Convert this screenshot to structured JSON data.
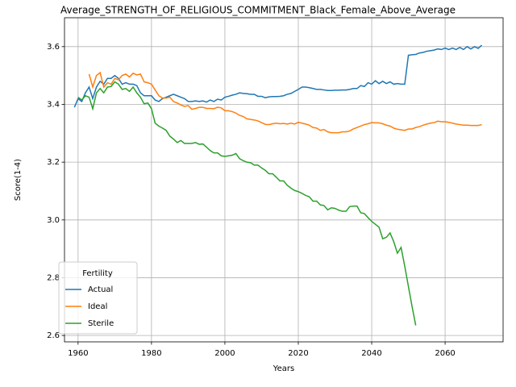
{
  "chart_data": {
    "type": "line",
    "title": "Average_STRENGTH_OF_RELIGIOUS_COMMITMENT_Black_Female_Above_Average",
    "x_label": "Years",
    "y_label": "Score(1-4)",
    "x": [
      1959,
      1960,
      1961,
      1962,
      1963,
      1964,
      1965,
      1966,
      1967,
      1968,
      1969,
      1970,
      1971,
      1972,
      1973,
      1974,
      1975,
      1976,
      1977,
      1978,
      1979,
      1980,
      1981,
      1982,
      1983,
      1984,
      1985,
      1986,
      1987,
      1988,
      1989,
      1990,
      1991,
      1992,
      1993,
      1994,
      1995,
      1996,
      1997,
      1998,
      1999,
      2000,
      2001,
      2002,
      2003,
      2004,
      2005,
      2006,
      2007,
      2008,
      2009,
      2010,
      2011,
      2012,
      2013,
      2014,
      2015,
      2016,
      2017,
      2018,
      2019,
      2020,
      2021,
      2022,
      2023,
      2024,
      2025,
      2026,
      2027,
      2028,
      2029,
      2030,
      2031,
      2032,
      2033,
      2034,
      2035,
      2036,
      2037,
      2038,
      2039,
      2040,
      2041,
      2042,
      2043,
      2044,
      2045,
      2046,
      2047,
      2048,
      2049,
      2050,
      2051,
      2052,
      2053,
      2054,
      2055,
      2056,
      2057,
      2058,
      2059,
      2060,
      2061,
      2062,
      2063,
      2064,
      2065,
      2066,
      2067,
      2068,
      2069,
      2070
    ],
    "series": [
      {
        "name": "Actual",
        "color": "#1f77b4",
        "values": [
          3.39,
          3.42,
          3.41,
          3.44,
          3.46,
          3.42,
          3.46,
          3.48,
          3.47,
          3.49,
          3.49,
          3.5,
          3.49,
          3.47,
          3.475,
          3.47,
          3.47,
          3.465,
          3.44,
          3.43,
          3.43,
          3.43,
          3.415,
          3.41,
          3.42,
          3.425,
          3.43,
          3.435,
          3.43,
          3.425,
          3.42,
          3.41,
          3.41,
          3.412,
          3.41,
          3.412,
          3.408,
          3.415,
          3.41,
          3.418,
          3.415,
          3.425,
          3.428,
          3.432,
          3.435,
          3.44,
          3.438,
          3.437,
          3.435,
          3.435,
          3.428,
          3.428,
          3.423,
          3.426,
          3.427,
          3.427,
          3.428,
          3.43,
          3.435,
          3.438,
          3.445,
          3.452,
          3.46,
          3.46,
          3.458,
          3.455,
          3.452,
          3.452,
          3.45,
          3.448,
          3.448,
          3.449,
          3.449,
          3.45,
          3.45,
          3.452,
          3.455,
          3.455,
          3.465,
          3.462,
          3.475,
          3.47,
          3.482,
          3.472,
          3.48,
          3.472,
          3.478,
          3.47,
          3.472,
          3.47,
          3.47,
          3.57,
          3.572,
          3.573,
          3.578,
          3.58,
          3.584,
          3.586,
          3.588,
          3.592,
          3.59,
          3.595,
          3.59,
          3.595,
          3.59,
          3.597,
          3.59,
          3.6,
          3.592,
          3.6,
          3.594,
          3.605
        ]
      },
      {
        "name": "Ideal",
        "color": "#ff7f0e",
        "values": [
          null,
          null,
          null,
          null,
          3.505,
          3.46,
          3.5,
          3.51,
          3.46,
          3.475,
          3.47,
          3.49,
          3.485,
          3.5,
          3.505,
          3.495,
          3.508,
          3.502,
          3.505,
          3.478,
          3.475,
          3.47,
          3.45,
          3.43,
          3.422,
          3.422,
          3.425,
          3.41,
          3.405,
          3.398,
          3.393,
          3.396,
          3.383,
          3.386,
          3.39,
          3.39,
          3.386,
          3.386,
          3.385,
          3.39,
          3.388,
          3.378,
          3.378,
          3.375,
          3.37,
          3.362,
          3.358,
          3.35,
          3.348,
          3.346,
          3.343,
          3.337,
          3.331,
          3.33,
          3.333,
          3.335,
          3.333,
          3.334,
          3.332,
          3.335,
          3.332,
          3.338,
          3.335,
          3.332,
          3.328,
          3.32,
          3.318,
          3.31,
          3.313,
          3.305,
          3.302,
          3.302,
          3.302,
          3.305,
          3.305,
          3.308,
          3.315,
          3.32,
          3.325,
          3.33,
          3.333,
          3.337,
          3.336,
          3.336,
          3.333,
          3.328,
          3.325,
          3.318,
          3.314,
          3.312,
          3.31,
          3.315,
          3.315,
          3.32,
          3.323,
          3.328,
          3.332,
          3.335,
          3.337,
          3.342,
          3.34,
          3.34,
          3.338,
          3.335,
          3.332,
          3.33,
          3.328,
          3.328,
          3.327,
          3.327,
          3.327,
          3.33
        ]
      },
      {
        "name": "Sterile",
        "color": "#2ca02c",
        "values": [
          null,
          3.425,
          3.415,
          3.43,
          3.425,
          3.385,
          3.44,
          3.455,
          3.44,
          3.46,
          3.462,
          3.478,
          3.47,
          3.452,
          3.455,
          3.445,
          3.46,
          3.44,
          3.425,
          3.402,
          3.405,
          3.385,
          3.335,
          3.325,
          3.318,
          3.31,
          3.29,
          3.28,
          3.268,
          3.275,
          3.265,
          3.265,
          3.265,
          3.268,
          3.262,
          3.263,
          3.252,
          3.24,
          3.232,
          3.232,
          3.222,
          3.22,
          3.222,
          3.224,
          3.23,
          3.212,
          3.205,
          3.2,
          3.198,
          3.19,
          3.19,
          3.18,
          3.172,
          3.16,
          3.16,
          3.148,
          3.135,
          3.135,
          3.12,
          3.11,
          3.102,
          3.098,
          3.092,
          3.085,
          3.08,
          3.065,
          3.065,
          3.052,
          3.05,
          3.035,
          3.042,
          3.04,
          3.034,
          3.03,
          3.03,
          3.046,
          3.048,
          3.048,
          3.025,
          3.022,
          3.008,
          2.995,
          2.985,
          2.975,
          2.935,
          2.94,
          2.955,
          2.925,
          2.885,
          2.905,
          2.84,
          2.77,
          2.7,
          2.635,
          null,
          null,
          null,
          null,
          null,
          null,
          null,
          null,
          null,
          null,
          null,
          null,
          null,
          null,
          null,
          null,
          null,
          null
        ]
      }
    ],
    "xlim": [
      1956.3,
      2075.8
    ],
    "xticks": [
      1960,
      1980,
      2000,
      2020,
      2040,
      2060
    ],
    "ylim": [
      2.578,
      3.7
    ],
    "yticks": [
      2.6,
      2.8,
      {
        "value": 3,
        "label": "3.0"
      },
      3.2,
      3.4,
      3.6
    ],
    "grid": true,
    "legend_title": "Fertility",
    "legend": "lower left"
  }
}
